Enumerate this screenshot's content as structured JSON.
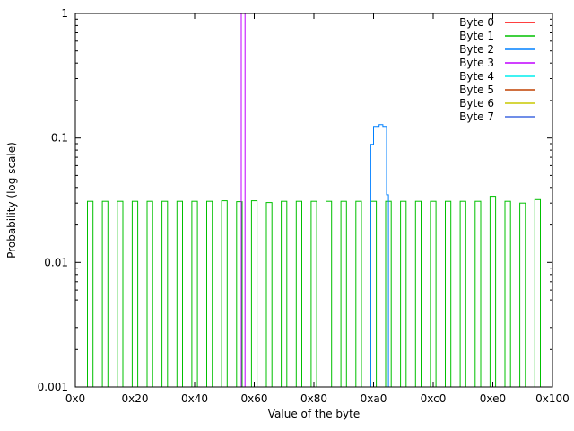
{
  "figure": {
    "background": "#ffffff",
    "frame_color": "#000000"
  },
  "chart_data": {
    "type": "line",
    "title": "",
    "xlabel": "Value of the byte",
    "ylabel": "Probability (log scale)",
    "xlim": [
      0,
      256
    ],
    "ylim": [
      0.001,
      1
    ],
    "y_scale": "log",
    "grid": false,
    "x_ticks": [
      {
        "value": 0,
        "label": "0x0"
      },
      {
        "value": 32,
        "label": "0x20"
      },
      {
        "value": 64,
        "label": "0x40"
      },
      {
        "value": 96,
        "label": "0x60"
      },
      {
        "value": 128,
        "label": "0x80"
      },
      {
        "value": 160,
        "label": "0xa0"
      },
      {
        "value": 192,
        "label": "0xc0"
      },
      {
        "value": 224,
        "label": "0xe0"
      },
      {
        "value": 256,
        "label": "0x100"
      }
    ],
    "y_ticks": [
      {
        "value": 1,
        "label": "1"
      },
      {
        "value": 0.1,
        "label": "0.1"
      },
      {
        "value": 0.01,
        "label": "0.01"
      },
      {
        "value": 0.001,
        "label": "0.001"
      }
    ],
    "legend_position": "top-right",
    "legend": [
      {
        "label": "Byte 0",
        "color": "#ff0000"
      },
      {
        "label": "Byte 1",
        "color": "#00c000"
      },
      {
        "label": "Byte 2",
        "color": "#0080ff"
      },
      {
        "label": "Byte 3",
        "color": "#c000ff"
      },
      {
        "label": "Byte 4",
        "color": "#00eeee"
      },
      {
        "label": "Byte 5",
        "color": "#c04000"
      },
      {
        "label": "Byte 6",
        "color": "#c8c800"
      },
      {
        "label": "Byte 7",
        "color": "#4169e1"
      }
    ],
    "series": [
      {
        "name": "Byte 1",
        "color": "#00c000",
        "style": "boxes",
        "box_halfwidth_values": 1.5,
        "bars": [
          [
            8,
            0.031
          ],
          [
            16,
            0.031
          ],
          [
            24,
            0.031
          ],
          [
            32,
            0.031
          ],
          [
            40,
            0.031
          ],
          [
            48,
            0.031
          ],
          [
            56,
            0.031
          ],
          [
            64,
            0.031
          ],
          [
            72,
            0.031
          ],
          [
            80,
            0.0313
          ],
          [
            88,
            0.0308
          ],
          [
            96,
            0.0313
          ],
          [
            104,
            0.0303
          ],
          [
            112,
            0.031
          ],
          [
            120,
            0.031
          ],
          [
            128,
            0.031
          ],
          [
            136,
            0.031
          ],
          [
            144,
            0.031
          ],
          [
            152,
            0.031
          ],
          [
            160,
            0.031
          ],
          [
            168,
            0.031
          ],
          [
            176,
            0.031
          ],
          [
            184,
            0.031
          ],
          [
            192,
            0.031
          ],
          [
            200,
            0.031
          ],
          [
            208,
            0.031
          ],
          [
            216,
            0.031
          ],
          [
            224,
            0.034
          ],
          [
            232,
            0.031
          ],
          [
            240,
            0.03
          ],
          [
            248,
            0.032
          ]
        ]
      },
      {
        "name": "Byte 2",
        "color": "#0080ff",
        "style": "steps",
        "segments": [
          [
            158.5,
            160,
            0.089
          ],
          [
            160,
            163,
            0.124
          ],
          [
            163,
            165,
            0.128
          ],
          [
            165,
            167,
            0.124
          ],
          [
            167,
            168,
            0.035
          ]
        ]
      },
      {
        "name": "Byte 3",
        "color": "#c000ff",
        "style": "boxes",
        "box_halfwidth_values": 1.0,
        "bars": [
          [
            90,
            1.0
          ]
        ]
      }
    ]
  }
}
